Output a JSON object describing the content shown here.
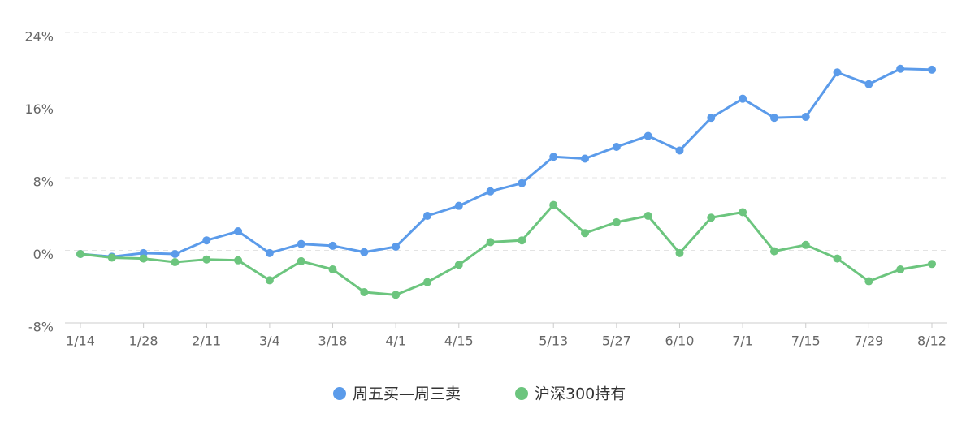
{
  "chart_data": {
    "type": "line",
    "categories": [
      "1/14",
      null,
      "1/28",
      null,
      "2/11",
      null,
      "3/4",
      null,
      "3/18",
      null,
      "4/1",
      null,
      "4/15",
      null,
      null,
      "5/13",
      null,
      "5/27",
      null,
      "6/10",
      null,
      "7/1",
      null,
      "7/15",
      null,
      "7/29",
      null,
      "8/12"
    ],
    "series": [
      {
        "name": "周五买—周三卖",
        "color": "#5b9bea",
        "values": [
          -0.4,
          -0.7,
          -0.3,
          -0.4,
          1.1,
          2.1,
          -0.3,
          0.7,
          0.5,
          -0.2,
          0.4,
          3.8,
          4.9,
          6.5,
          7.4,
          10.3,
          10.1,
          11.4,
          12.6,
          11.0,
          14.6,
          16.7,
          14.6,
          14.7,
          19.6,
          18.3,
          20.0,
          19.9
        ]
      },
      {
        "name": "沪深300持有",
        "color": "#6cc57e",
        "values": [
          -0.4,
          -0.8,
          -0.9,
          -1.3,
          -1.0,
          -1.1,
          -3.3,
          -1.2,
          -2.1,
          -4.6,
          -4.9,
          -3.5,
          -1.6,
          0.9,
          1.1,
          5.0,
          1.9,
          3.1,
          3.8,
          -0.3,
          3.6,
          4.2,
          -0.1,
          0.6,
          -0.9,
          -3.4,
          -2.1,
          -1.5
        ]
      }
    ],
    "ylim": [
      -8,
      24
    ],
    "yticks": [
      {
        "value": -8,
        "label": "-8%"
      },
      {
        "value": 0,
        "label": "0%"
      },
      {
        "value": 8,
        "label": "8%"
      },
      {
        "value": 16,
        "label": "16%"
      },
      {
        "value": 24,
        "label": "24%"
      }
    ],
    "grid": true,
    "legend": "bottom"
  }
}
